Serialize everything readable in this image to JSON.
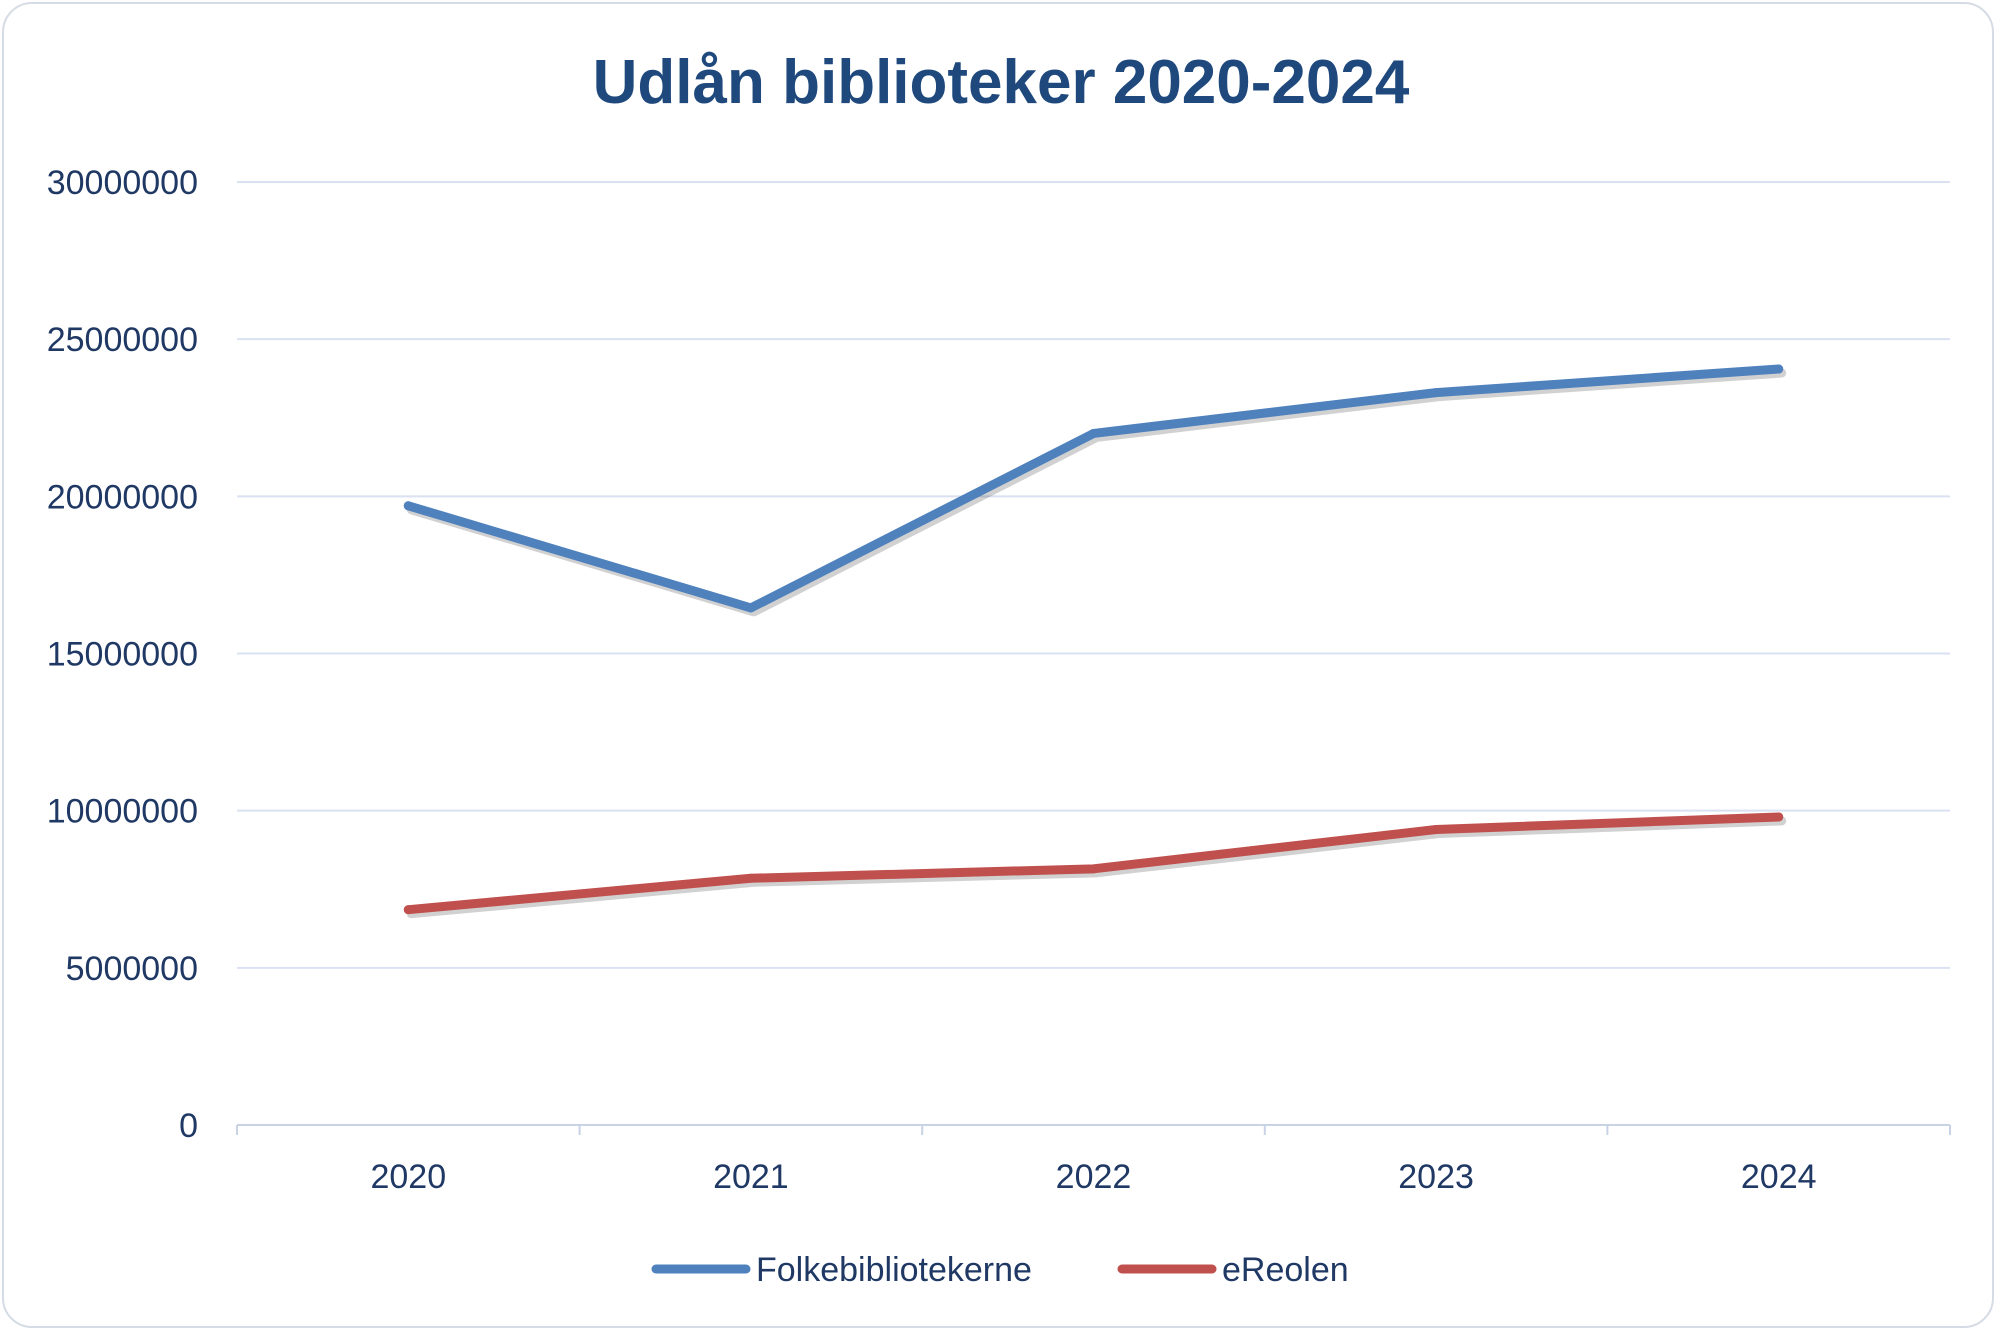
{
  "chart_data": {
    "type": "line",
    "title": "Udlån biblioteker 2020-2024",
    "xlabel": "",
    "ylabel": "",
    "categories": [
      "2020",
      "2021",
      "2022",
      "2023",
      "2024"
    ],
    "ylim": [
      0,
      30000000
    ],
    "yticks": [
      0,
      5000000,
      10000000,
      15000000,
      20000000,
      25000000,
      30000000
    ],
    "ytick_labels": [
      "0",
      "5000000",
      "10000000",
      "15000000",
      "20000000",
      "25000000",
      "30000000"
    ],
    "grid": true,
    "legend_position": "bottom",
    "series": [
      {
        "name": "Folkebibliotekerne",
        "color": "#4f81bd",
        "values": [
          19700000,
          16450000,
          22000000,
          23300000,
          24050000
        ]
      },
      {
        "name": "eReolen",
        "color": "#c0504d",
        "values": [
          6850000,
          7850000,
          8150000,
          9400000,
          9800000
        ]
      }
    ]
  }
}
